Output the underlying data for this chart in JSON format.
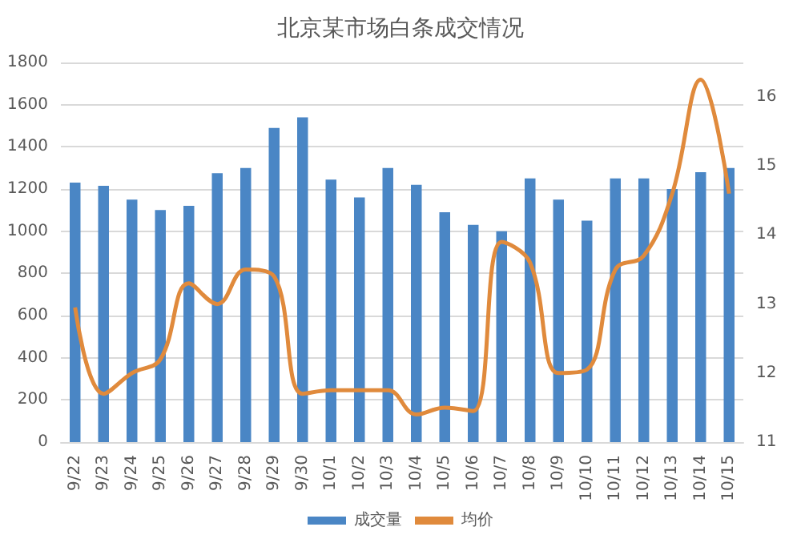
{
  "chart_data": {
    "type": "bar",
    "title": "北京某市场白条成交情况",
    "categories": [
      "9/22",
      "9/23",
      "9/24",
      "9/25",
      "9/26",
      "9/27",
      "9/28",
      "9/29",
      "9/30",
      "10/1",
      "10/2",
      "10/3",
      "10/4",
      "10/5",
      "10/6",
      "10/7",
      "10/8",
      "10/9",
      "10/10",
      "10/11",
      "10/12",
      "10/13",
      "10/14",
      "10/15"
    ],
    "series": [
      {
        "name": "成交量",
        "color": "#4a86c5",
        "values": [
          1230,
          1215,
          1150,
          1100,
          1120,
          1275,
          1300,
          1490,
          1540,
          1245,
          1160,
          1300,
          1220,
          1090,
          1030,
          1000,
          1250,
          1150,
          1050,
          1250,
          1250,
          1200,
          1280,
          1300
        ]
      },
      {
        "name": "均价",
        "type": "line",
        "axis": "y2",
        "color": "#e08a3c",
        "values": [
          12.95,
          11.7,
          12.0,
          12.2,
          13.3,
          13.0,
          13.5,
          13.4,
          11.7,
          11.75,
          11.75,
          11.75,
          11.4,
          11.5,
          11.45,
          13.9,
          13.6,
          12.0,
          12.05,
          13.5,
          13.7,
          14.6,
          16.25,
          14.6
        ]
      }
    ],
    "ylim": [
      0,
      1800
    ],
    "yticks": [
      0,
      200,
      400,
      600,
      800,
      1000,
      1200,
      1400,
      1600,
      1800
    ],
    "y2lim": [
      11,
      16.5
    ],
    "y2ticks": [
      11,
      12,
      13,
      14,
      15,
      16
    ],
    "grid": "y",
    "legend": "bottom",
    "marker": "none"
  }
}
